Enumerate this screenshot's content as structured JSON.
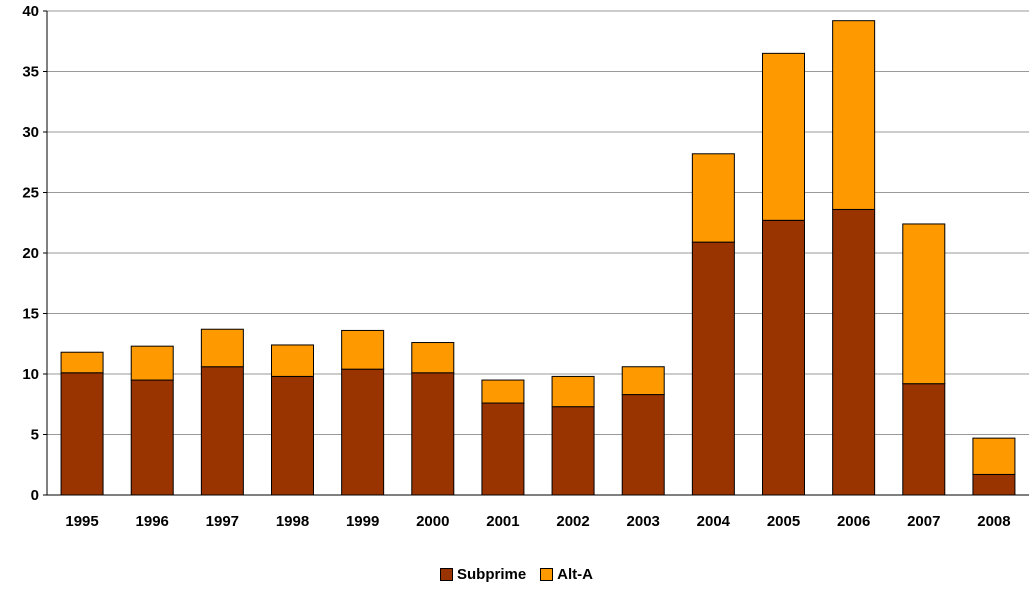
{
  "chart_data": {
    "type": "bar",
    "stacked": true,
    "categories": [
      "1995",
      "1996",
      "1997",
      "1998",
      "1999",
      "2000",
      "2001",
      "2002",
      "2003",
      "2004",
      "2005",
      "2006",
      "2007",
      "2008"
    ],
    "series": [
      {
        "name": "Subprime",
        "color": "#993300",
        "values": [
          10.1,
          9.5,
          10.6,
          9.8,
          10.4,
          10.1,
          7.6,
          7.3,
          8.3,
          20.9,
          22.7,
          23.6,
          9.2,
          1.7
        ]
      },
      {
        "name": "Alt-A",
        "color": "#FF9900",
        "values": [
          1.7,
          2.8,
          3.1,
          2.6,
          3.2,
          2.5,
          1.9,
          2.5,
          2.3,
          7.3,
          13.8,
          15.6,
          13.2,
          3.0
        ]
      }
    ],
    "ylim": [
      0,
      40
    ],
    "yticks": [
      0,
      5,
      10,
      15,
      20,
      25,
      30,
      35,
      40
    ],
    "grid": true,
    "legend_position": "bottom-center",
    "title": "",
    "xlabel": "",
    "ylabel": ""
  }
}
